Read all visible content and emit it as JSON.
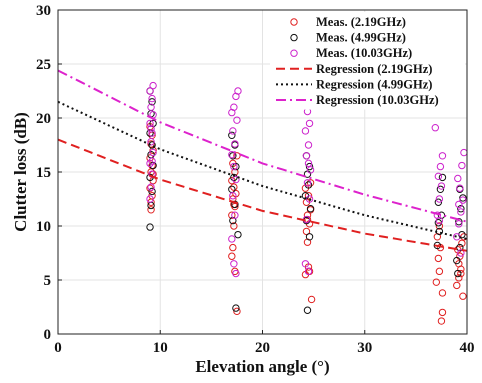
{
  "chart_data": {
    "type": "scatter",
    "title": "",
    "xlabel": "Elevation angle (°)",
    "ylabel": "Clutter loss (dB)",
    "xlim": [
      0,
      40
    ],
    "ylim": [
      0,
      30
    ],
    "xticks": [
      "0",
      "10",
      "20",
      "30",
      "40"
    ],
    "yticks": [
      "0",
      "5",
      "10",
      "15",
      "20",
      "25",
      "30"
    ],
    "grid": true,
    "legend_position": "top-right",
    "series": [
      {
        "name": "Meas. (2.19GHz)",
        "kind": "scatter",
        "marker": "circle",
        "color": "#e02020",
        "points": [
          [
            9.1,
            11.5
          ],
          [
            9.2,
            12.8
          ],
          [
            9.0,
            13.5
          ],
          [
            9.3,
            14.2
          ],
          [
            9.1,
            15.0
          ],
          [
            9.2,
            15.6
          ],
          [
            9.0,
            16.3
          ],
          [
            9.3,
            17.0
          ],
          [
            9.1,
            17.6
          ],
          [
            9.2,
            18.4
          ],
          [
            9.0,
            19.2
          ],
          [
            9.1,
            12.2
          ],
          [
            9.3,
            14.8
          ],
          [
            17.0,
            7.2
          ],
          [
            17.1,
            8.0
          ],
          [
            17.3,
            5.8
          ],
          [
            17.5,
            2.1
          ],
          [
            17.2,
            10.0
          ],
          [
            17.0,
            11.0
          ],
          [
            17.3,
            11.8
          ],
          [
            17.1,
            12.5
          ],
          [
            17.4,
            13.0
          ],
          [
            17.2,
            13.6
          ],
          [
            17.0,
            14.2
          ],
          [
            17.3,
            15.0
          ],
          [
            17.1,
            15.8
          ],
          [
            17.5,
            16.5
          ],
          [
            17.2,
            12.0
          ],
          [
            24.2,
            5.5
          ],
          [
            24.5,
            6.2
          ],
          [
            24.8,
            3.2
          ],
          [
            24.6,
            5.8
          ],
          [
            24.4,
            8.5
          ],
          [
            24.3,
            9.5
          ],
          [
            24.6,
            10.2
          ],
          [
            24.4,
            11.0
          ],
          [
            24.7,
            11.5
          ],
          [
            24.3,
            12.2
          ],
          [
            24.5,
            12.8
          ],
          [
            24.2,
            13.5
          ],
          [
            24.7,
            14.0
          ],
          [
            24.4,
            10.6
          ],
          [
            37.0,
            4.8
          ],
          [
            37.3,
            5.8
          ],
          [
            37.5,
            1.2
          ],
          [
            37.6,
            2.0
          ],
          [
            37.2,
            7.0
          ],
          [
            37.4,
            8.0
          ],
          [
            37.1,
            9.0
          ],
          [
            37.6,
            3.8
          ],
          [
            37.3,
            10.0
          ],
          [
            39.0,
            4.5
          ],
          [
            39.2,
            5.2
          ],
          [
            39.4,
            6.0
          ],
          [
            39.6,
            3.5
          ],
          [
            39.3,
            7.2
          ],
          [
            39.1,
            7.8
          ],
          [
            39.5,
            8.4
          ],
          [
            39.7,
            9.0
          ],
          [
            39.2,
            6.5
          ],
          [
            39.4,
            5.6
          ]
        ]
      },
      {
        "name": "Meas. (4.99GHz)",
        "kind": "scatter",
        "marker": "circle",
        "color": "#111111",
        "points": [
          [
            9.0,
            9.9
          ],
          [
            9.1,
            11.9
          ],
          [
            9.2,
            13.2
          ],
          [
            9.0,
            14.5
          ],
          [
            9.3,
            15.6
          ],
          [
            9.1,
            16.6
          ],
          [
            9.2,
            17.5
          ],
          [
            9.0,
            18.6
          ],
          [
            9.3,
            19.5
          ],
          [
            9.1,
            20.4
          ],
          [
            9.2,
            21.5
          ],
          [
            9.0,
            22.5
          ],
          [
            17.4,
            2.4
          ],
          [
            17.6,
            9.2
          ],
          [
            17.1,
            10.5
          ],
          [
            17.3,
            12.0
          ],
          [
            17.0,
            13.4
          ],
          [
            17.2,
            14.5
          ],
          [
            17.4,
            15.5
          ],
          [
            17.1,
            16.5
          ],
          [
            17.3,
            17.5
          ],
          [
            17.0,
            18.4
          ],
          [
            24.4,
            2.2
          ],
          [
            24.6,
            9.0
          ],
          [
            24.3,
            10.5
          ],
          [
            24.7,
            11.6
          ],
          [
            24.2,
            12.8
          ],
          [
            24.5,
            13.8
          ],
          [
            24.4,
            14.8
          ],
          [
            24.6,
            15.5
          ],
          [
            24.3,
            16.5
          ],
          [
            37.1,
            8.2
          ],
          [
            37.3,
            9.5
          ],
          [
            37.5,
            11.0
          ],
          [
            37.2,
            12.2
          ],
          [
            37.4,
            13.4
          ],
          [
            37.6,
            14.5
          ],
          [
            37.2,
            10.3
          ],
          [
            39.0,
            6.8
          ],
          [
            39.3,
            8.0
          ],
          [
            39.5,
            9.2
          ],
          [
            39.2,
            10.4
          ],
          [
            39.4,
            11.6
          ],
          [
            39.6,
            12.6
          ],
          [
            39.3,
            13.4
          ],
          [
            39.1,
            5.6
          ]
        ]
      },
      {
        "name": "Meas. (10.03GHz)",
        "kind": "scatter",
        "marker": "circle",
        "color": "#cc22cc",
        "points": [
          [
            9.0,
            12.5
          ],
          [
            9.1,
            13.6
          ],
          [
            9.2,
            14.8
          ],
          [
            9.0,
            15.8
          ],
          [
            9.3,
            16.8
          ],
          [
            9.1,
            17.8
          ],
          [
            9.2,
            18.6
          ],
          [
            9.0,
            19.5
          ],
          [
            9.3,
            20.3
          ],
          [
            9.1,
            21.0
          ],
          [
            9.2,
            21.8
          ],
          [
            9.0,
            22.5
          ],
          [
            9.3,
            23.0
          ],
          [
            9.1,
            19.0
          ],
          [
            9.2,
            16.0
          ],
          [
            17.2,
            6.5
          ],
          [
            17.4,
            5.6
          ],
          [
            17.0,
            8.8
          ],
          [
            17.3,
            11.0
          ],
          [
            17.1,
            12.8
          ],
          [
            17.4,
            14.3
          ],
          [
            17.2,
            15.5
          ],
          [
            17.0,
            16.6
          ],
          [
            17.3,
            17.6
          ],
          [
            17.1,
            18.8
          ],
          [
            17.5,
            19.8
          ],
          [
            17.2,
            21.0
          ],
          [
            17.4,
            22.0
          ],
          [
            17.6,
            22.5
          ],
          [
            17.0,
            20.5
          ],
          [
            24.2,
            6.5
          ],
          [
            24.5,
            5.8
          ],
          [
            24.3,
            10.6
          ],
          [
            24.6,
            12.5
          ],
          [
            24.4,
            14.0
          ],
          [
            24.7,
            15.2
          ],
          [
            24.3,
            16.5
          ],
          [
            24.5,
            17.5
          ],
          [
            24.2,
            18.8
          ],
          [
            24.6,
            19.5
          ],
          [
            24.4,
            20.6
          ],
          [
            24.7,
            21.3
          ],
          [
            24.5,
            15.8
          ],
          [
            36.9,
            19.1
          ],
          [
            37.1,
            11.0
          ],
          [
            37.3,
            12.5
          ],
          [
            37.5,
            13.7
          ],
          [
            37.2,
            14.6
          ],
          [
            37.4,
            15.5
          ],
          [
            37.6,
            16.5
          ],
          [
            37.3,
            10.5
          ],
          [
            39.0,
            9.0
          ],
          [
            39.2,
            10.2
          ],
          [
            39.4,
            11.3
          ],
          [
            39.6,
            12.4
          ],
          [
            39.3,
            13.5
          ],
          [
            39.1,
            14.4
          ],
          [
            39.5,
            15.6
          ],
          [
            39.7,
            16.8
          ],
          [
            39.4,
            7.5
          ],
          [
            39.2,
            12.0
          ]
        ]
      },
      {
        "name": "Regression (2.19GHz)",
        "kind": "line",
        "dash": "dashed",
        "color": "#e02020",
        "points": [
          [
            0,
            18.0
          ],
          [
            10,
            14.3
          ],
          [
            20,
            11.4
          ],
          [
            30,
            9.3
          ],
          [
            40,
            7.7
          ]
        ]
      },
      {
        "name": "Regression (4.99GHz)",
        "kind": "line",
        "dash": "dotted",
        "color": "#111111",
        "points": [
          [
            0,
            21.5
          ],
          [
            10,
            17.1
          ],
          [
            20,
            13.7
          ],
          [
            30,
            11.0
          ],
          [
            40,
            8.8
          ]
        ]
      },
      {
        "name": "Regression (10.03GHz)",
        "kind": "line",
        "dash": "dashdot",
        "color": "#dd22cc",
        "points": [
          [
            0,
            24.4
          ],
          [
            10,
            19.6
          ],
          [
            20,
            15.8
          ],
          [
            30,
            12.9
          ],
          [
            40,
            10.4
          ]
        ]
      }
    ]
  }
}
